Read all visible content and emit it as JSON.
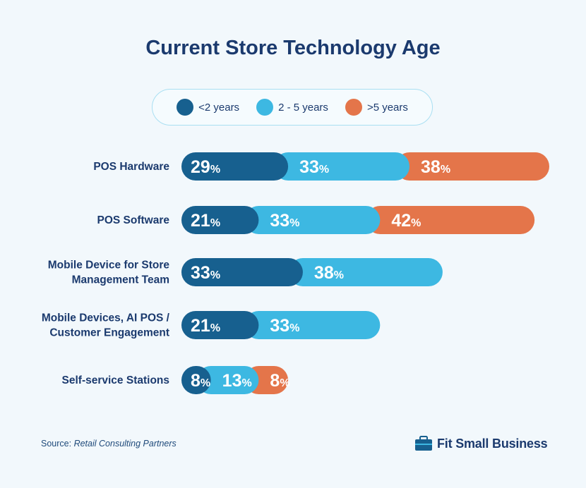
{
  "colors": {
    "lt2": "#17608f",
    "mid": "#3db8e2",
    "gt5": "#e4754a",
    "text": "#1b3a6e"
  },
  "chart_data": {
    "type": "bar",
    "orientation": "horizontal",
    "stacked": true,
    "title": "Current Store Technology Age",
    "categories": [
      [
        "POS Hardware"
      ],
      [
        "POS Software"
      ],
      [
        "Mobile Device for Store",
        "Management Team"
      ],
      [
        "Mobile Devices, AI POS /",
        "Customer Engagement"
      ],
      [
        "Self-service Stations"
      ]
    ],
    "series": [
      {
        "name": "<2 years",
        "color": "#17608f",
        "values": [
          29,
          21,
          33,
          21,
          8
        ]
      },
      {
        "name": "2 - 5 years",
        "color": "#3db8e2",
        "values": [
          33,
          33,
          38,
          33,
          13
        ]
      },
      {
        "name": ">5 years",
        "color": "#e4754a",
        "values": [
          38,
          42,
          null,
          null,
          8
        ]
      }
    ],
    "value_suffix": "%",
    "legend_position": "top",
    "grid": false
  },
  "footer": {
    "source_label": "Source:",
    "source_name": "Retail Consulting Partners",
    "brand": "Fit Small Business",
    "brand_icon": "briefcase-icon"
  }
}
